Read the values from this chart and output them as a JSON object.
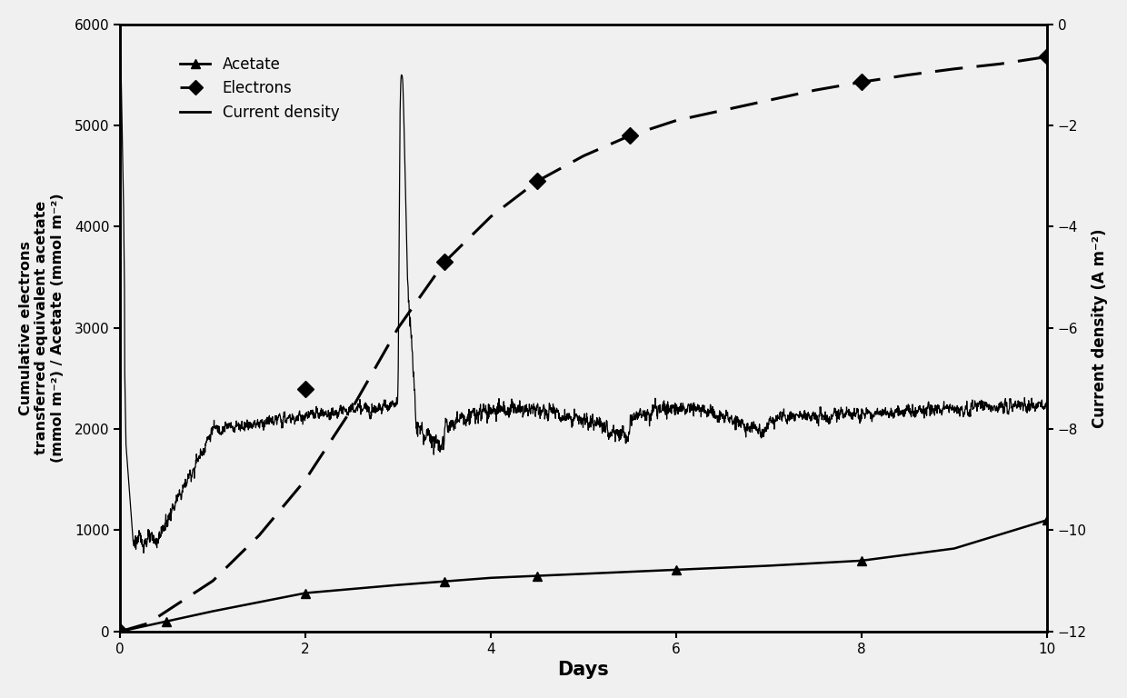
{
  "title": "",
  "xlabel": "Days",
  "ylabel_left": "Cumulative electrons\ntransferred equivalent acetate\n(mmol m⁻²) / Acetate (mmol m⁻²)",
  "ylabel_right": "Current density (A m⁻²)",
  "xlim": [
    0,
    10
  ],
  "ylim_left": [
    0,
    6000
  ],
  "ylim_right": [
    -12,
    0
  ],
  "xticks": [
    0,
    2,
    4,
    6,
    8,
    10
  ],
  "yticks_left": [
    0,
    1000,
    2000,
    3000,
    4000,
    5000,
    6000
  ],
  "yticks_right": [
    0,
    -2,
    -4,
    -6,
    -8,
    -10,
    -12
  ],
  "acetate_x": [
    0,
    0.5,
    1.0,
    2.0,
    3.0,
    4.0,
    5.0,
    6.0,
    7.0,
    8.0,
    9.0,
    10.0
  ],
  "acetate_y": [
    0,
    100,
    200,
    380,
    460,
    530,
    570,
    610,
    650,
    700,
    820,
    1100
  ],
  "electrons_x": [
    0,
    2.0,
    3.5,
    4.5,
    5.5,
    8.0,
    10.0
  ],
  "electrons_y": [
    0,
    2400,
    3650,
    4450,
    4900,
    5430,
    5680
  ],
  "electrons_line_x": [
    0,
    0.3,
    0.5,
    1.0,
    1.5,
    2.0,
    2.5,
    3.0,
    3.5,
    4.0,
    4.5,
    5.0,
    5.5,
    6.0,
    6.5,
    7.0,
    7.5,
    8.0,
    8.5,
    9.0,
    9.5,
    10.0
  ],
  "electrons_line_y": [
    0,
    80,
    200,
    500,
    950,
    1500,
    2200,
    3000,
    3650,
    4100,
    4450,
    4700,
    4900,
    5050,
    5150,
    5250,
    5350,
    5430,
    5500,
    5560,
    5610,
    5680
  ],
  "background_color": "#f0f0f0",
  "line_color": "#000000",
  "legend_fontsize": 12,
  "axis_fontsize": 12,
  "tick_fontsize": 11
}
